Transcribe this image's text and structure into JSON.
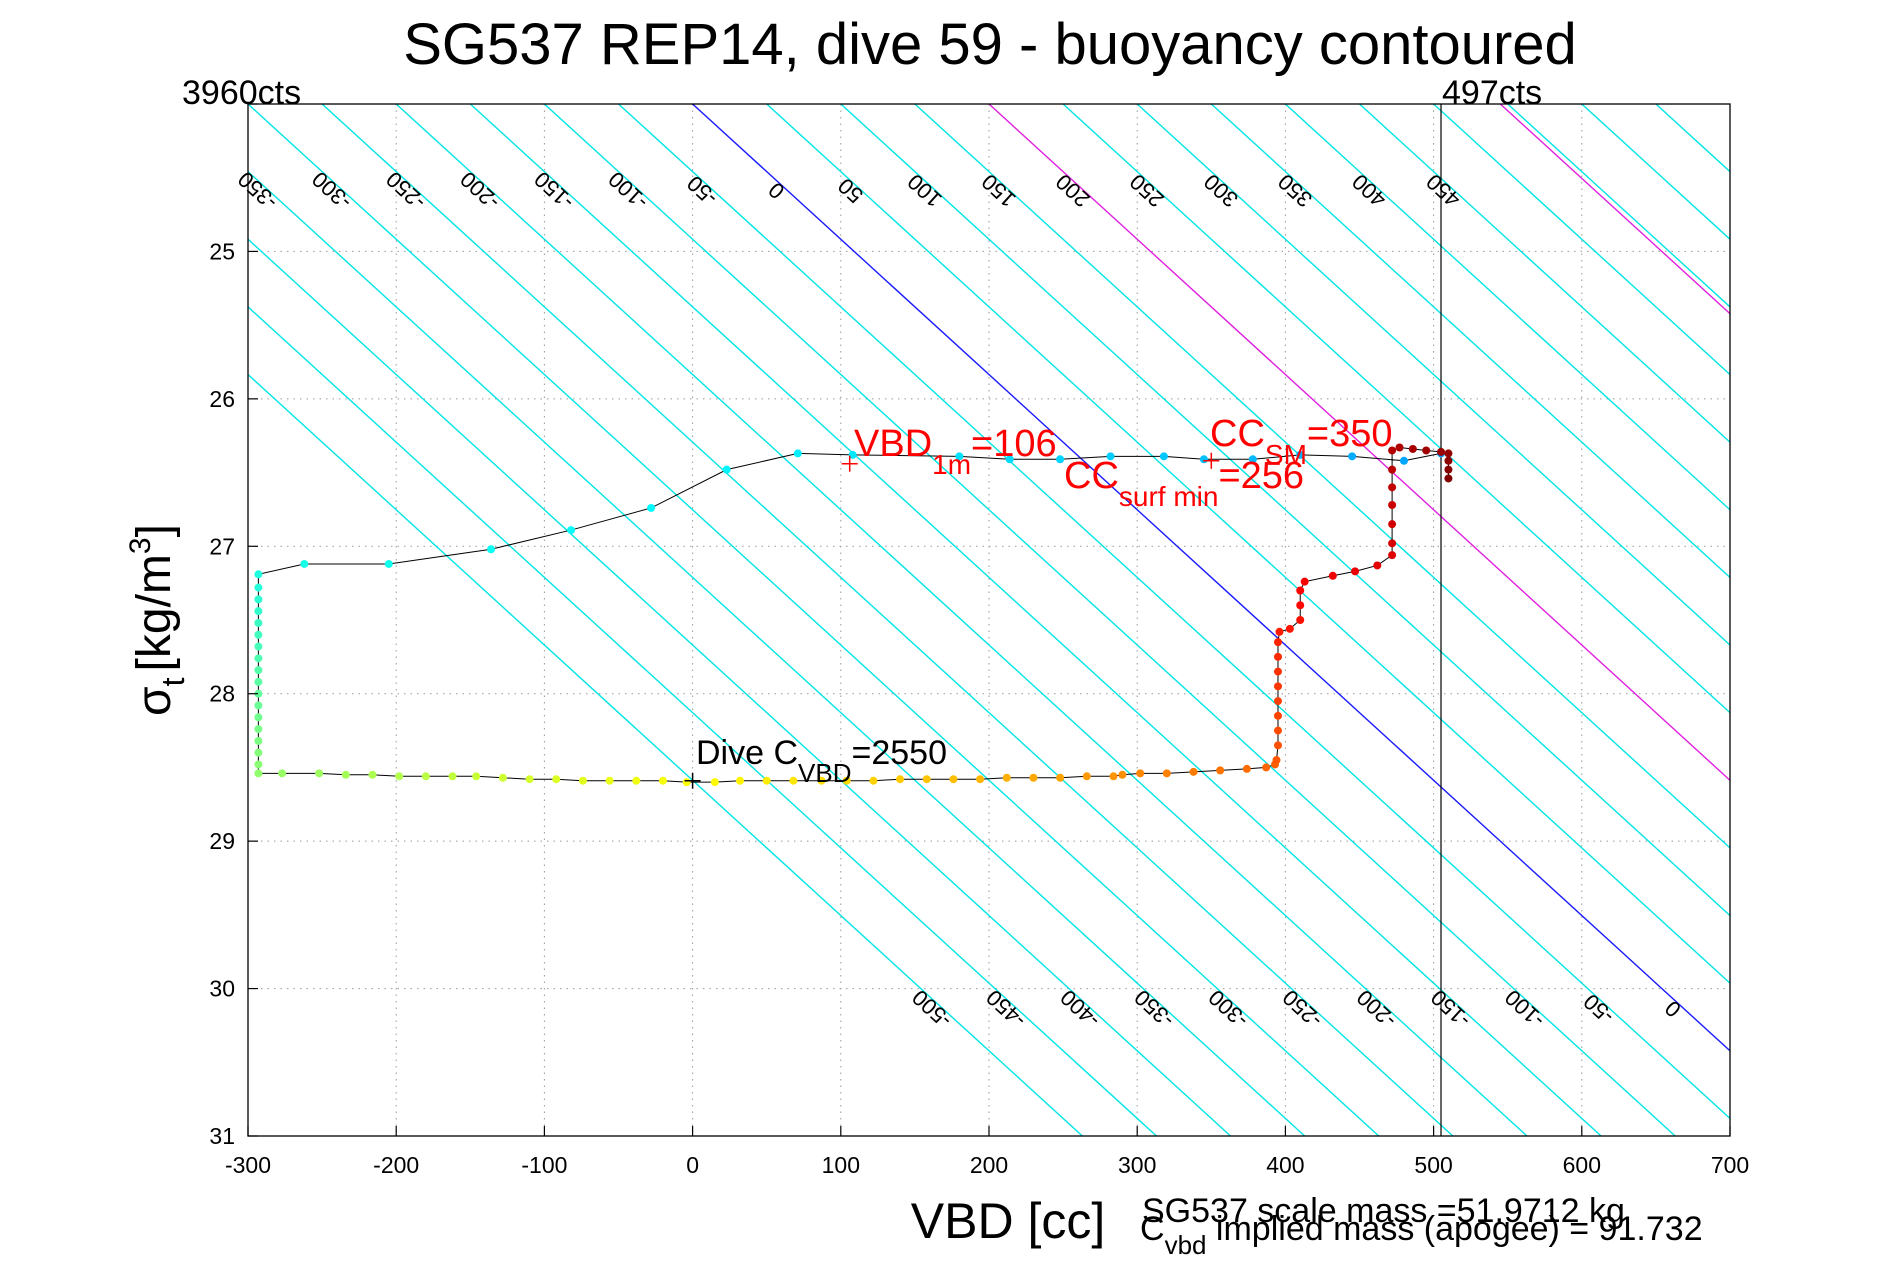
{
  "chart_data": {
    "type": "scatter",
    "title": "SG537 REP14, dive 59 - buoyancy contoured",
    "xlabel": "VBD [cc]",
    "ylabel_main": "σ",
    "ylabel_sub": "t",
    "ylabel_units": "[kg/m",
    "ylabel_sup": "3",
    "ylabel_close": "]",
    "xlim": [
      -300,
      700
    ],
    "ylim": [
      24,
      31
    ],
    "y_reversed": true,
    "grid": true,
    "x_ticks": [
      -300,
      -200,
      -100,
      0,
      100,
      200,
      300,
      400,
      500,
      600,
      700
    ],
    "y_ticks": [
      24,
      25,
      26,
      27,
      28,
      29,
      30,
      31
    ],
    "y_tick_labels": [
      "",
      "25",
      "26",
      "27",
      "28",
      "29",
      "30",
      "31"
    ],
    "corner_left": "3960cts",
    "corner_right": "497cts",
    "footer_line1": "SG537 scale mass =51.9712 kg",
    "footer_line2_main": "C",
    "footer_line2_sub": "vbd",
    "footer_line2_rest": " implied mass (apogee) = 91.732",
    "contour_slope_cc_per_sigma": 109,
    "contours": [
      {
        "value": -500,
        "color": "#00e5e5",
        "label": "-500"
      },
      {
        "value": -450,
        "color": "#00e5e5",
        "label": "-450"
      },
      {
        "value": -400,
        "color": "#00e5e5",
        "label": "-400"
      },
      {
        "value": -350,
        "color": "#00e5e5",
        "label": "-350"
      },
      {
        "value": -300,
        "color": "#00e5e5",
        "label": "-300"
      },
      {
        "value": -250,
        "color": "#00e5e5",
        "label": "-250"
      },
      {
        "value": -200,
        "color": "#00e5e5",
        "label": "-200"
      },
      {
        "value": -150,
        "color": "#00e5e5",
        "label": "-150"
      },
      {
        "value": -100,
        "color": "#00e5e5",
        "label": "-100"
      },
      {
        "value": -50,
        "color": "#00e5e5",
        "label": "-50"
      },
      {
        "value": 0,
        "color": "#1a1aff",
        "label": "0"
      },
      {
        "value": 50,
        "color": "#00e5e5",
        "label": "50"
      },
      {
        "value": 100,
        "color": "#00e5e5",
        "label": "100"
      },
      {
        "value": 150,
        "color": "#00e5e5",
        "label": "150"
      },
      {
        "value": 200,
        "color": "#e020e0",
        "label": "200"
      },
      {
        "value": 250,
        "color": "#00e5e5",
        "label": "250"
      },
      {
        "value": 300,
        "color": "#00e5e5",
        "label": "300"
      },
      {
        "value": 350,
        "color": "#00e5e5",
        "label": "350"
      },
      {
        "value": 400,
        "color": "#00e5e5",
        "label": "400"
      },
      {
        "value": 450,
        "color": "#00e5e5",
        "label": "450"
      },
      {
        "value": 500,
        "color": "#00e5e5",
        "label": ""
      },
      {
        "value": 550,
        "color": "#00e5e5",
        "label": ""
      },
      {
        "value": 600,
        "color": "#00e5e5",
        "label": ""
      },
      {
        "value": 650,
        "color": "#00e5e5",
        "label": ""
      }
    ],
    "extra_magenta_lines": [
      {
        "vbd_at_24": 706,
        "slope": 109
      },
      {
        "vbd_at_24": 545,
        "slope": 109
      }
    ],
    "vertical_line_vbd": 505,
    "series": [
      {
        "points": [
          [
            505,
            26.37
          ],
          [
            480,
            26.42
          ],
          [
            445,
            26.39
          ],
          [
            410,
            26.38
          ],
          [
            378,
            26.41
          ],
          [
            345,
            26.41
          ],
          [
            318,
            26.39
          ],
          [
            282,
            26.39
          ],
          [
            248,
            26.41
          ],
          [
            214,
            26.41
          ],
          [
            180,
            26.39
          ],
          [
            108,
            26.38
          ],
          [
            71,
            26.37
          ],
          [
            23,
            26.48
          ],
          [
            -28,
            26.74
          ],
          [
            -82,
            26.89
          ],
          [
            -136,
            27.02
          ],
          [
            -205,
            27.12
          ],
          [
            -262,
            27.12
          ],
          [
            -293,
            27.19
          ],
          [
            -293,
            27.28
          ],
          [
            -293,
            27.36
          ],
          [
            -293,
            27.44
          ],
          [
            -293,
            27.52
          ],
          [
            -293,
            27.6
          ],
          [
            -293,
            27.68
          ],
          [
            -293,
            27.76
          ],
          [
            -293,
            27.84
          ],
          [
            -293,
            27.92
          ],
          [
            -293,
            28.0
          ],
          [
            -293,
            28.08
          ],
          [
            -293,
            28.16
          ],
          [
            -293,
            28.24
          ],
          [
            -293,
            28.32
          ],
          [
            -293,
            28.4
          ],
          [
            -293,
            28.48
          ],
          [
            -293,
            28.54
          ],
          [
            -277,
            28.54
          ],
          [
            -252,
            28.54
          ],
          [
            -234,
            28.55
          ],
          [
            -216,
            28.55
          ],
          [
            -198,
            28.56
          ],
          [
            -180,
            28.56
          ],
          [
            -162,
            28.56
          ],
          [
            -146,
            28.56
          ],
          [
            -128,
            28.57
          ],
          [
            -110,
            28.58
          ],
          [
            -92,
            28.58
          ],
          [
            -74,
            28.59
          ],
          [
            -56,
            28.59
          ],
          [
            -38,
            28.59
          ],
          [
            -20,
            28.59
          ],
          [
            -4,
            28.6
          ],
          [
            15,
            28.6
          ],
          [
            32,
            28.59
          ],
          [
            50,
            28.59
          ],
          [
            68,
            28.59
          ],
          [
            87,
            28.59
          ],
          [
            104,
            28.59
          ],
          [
            122,
            28.59
          ],
          [
            140,
            28.58
          ],
          [
            158,
            28.58
          ],
          [
            176,
            28.58
          ],
          [
            194,
            28.58
          ],
          [
            212,
            28.57
          ],
          [
            230,
            28.57
          ],
          [
            248,
            28.57
          ],
          [
            266,
            28.56
          ],
          [
            284,
            28.56
          ],
          [
            290,
            28.55
          ],
          [
            302,
            28.54
          ],
          [
            320,
            28.54
          ],
          [
            338,
            28.53
          ],
          [
            356,
            28.52
          ],
          [
            374,
            28.51
          ],
          [
            387,
            28.5
          ],
          [
            393,
            28.48
          ],
          [
            394,
            28.45
          ],
          [
            395,
            28.35
          ],
          [
            395,
            28.25
          ],
          [
            395,
            28.15
          ],
          [
            395,
            28.05
          ],
          [
            395,
            27.95
          ],
          [
            395,
            27.85
          ],
          [
            395,
            27.75
          ],
          [
            395,
            27.65
          ],
          [
            396,
            27.58
          ],
          [
            403,
            27.56
          ],
          [
            410,
            27.5
          ],
          [
            410,
            27.4
          ],
          [
            410,
            27.3
          ],
          [
            413,
            27.24
          ],
          [
            432,
            27.2
          ],
          [
            447,
            27.17
          ],
          [
            462,
            27.13
          ],
          [
            472,
            27.06
          ],
          [
            472,
            26.98
          ],
          [
            472,
            26.85
          ],
          [
            472,
            26.72
          ],
          [
            472,
            26.6
          ],
          [
            472,
            26.48
          ],
          [
            472,
            26.35
          ],
          [
            477,
            26.33
          ],
          [
            486,
            26.34
          ],
          [
            495,
            26.35
          ],
          [
            505,
            26.36
          ],
          [
            510,
            26.37
          ],
          [
            510,
            26.42
          ],
          [
            510,
            26.48
          ],
          [
            510,
            26.54
          ]
        ]
      }
    ],
    "annotations": [
      {
        "id": "vbd1m",
        "vbd": 106,
        "sigma": 26.44,
        "label_main": "VBD",
        "label_sub": "1m",
        "label_rest": "=106",
        "color": "#ff0000",
        "marker": "+"
      },
      {
        "id": "ccsurf",
        "vbd": 350,
        "sigma": 26.42,
        "label_main": "CC",
        "label_sub": "surf min",
        "label_rest": "=256",
        "color": "#ff0000",
        "marker": "+"
      },
      {
        "id": "ccsm",
        "label_main": "CC",
        "label_sub": "SM",
        "label_rest": "=350",
        "color": "#ff0000"
      },
      {
        "id": "dive",
        "vbd": 0,
        "sigma": 28.59,
        "label_main": "Dive C",
        "label_sub": "VBD",
        "label_rest": "=2550",
        "color": "#000000",
        "marker": "+"
      }
    ]
  }
}
